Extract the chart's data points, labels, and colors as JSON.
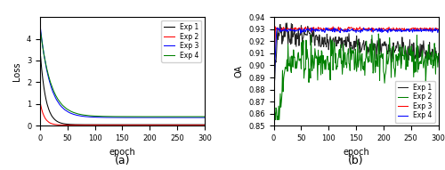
{
  "epochs": 300,
  "loss_ylim": [
    0,
    5
  ],
  "loss_yticks": [
    0,
    1,
    2,
    3,
    4
  ],
  "loss_ylabel": "Loss",
  "loss_xlabel": "epoch",
  "oa_ylim": [
    0.85,
    0.94
  ],
  "oa_yticks": [
    0.85,
    0.86,
    0.87,
    0.88,
    0.89,
    0.9,
    0.91,
    0.92,
    0.93,
    0.94
  ],
  "oa_ylabel": "OA",
  "oa_xlabel": "epoch",
  "xticks": [
    0,
    50,
    100,
    150,
    200,
    250,
    300
  ],
  "colors_loss": {
    "Exp 1": "#000000",
    "Exp 2": "#ff0000",
    "Exp 3": "#0000ff",
    "Exp 4": "#008000"
  },
  "colors_oa": {
    "Exp 1": "#222222",
    "Exp 2": "#008000",
    "Exp 3": "#ff0000",
    "Exp 4": "#0000ff"
  },
  "label_a": "(a)",
  "label_b": "(b)"
}
